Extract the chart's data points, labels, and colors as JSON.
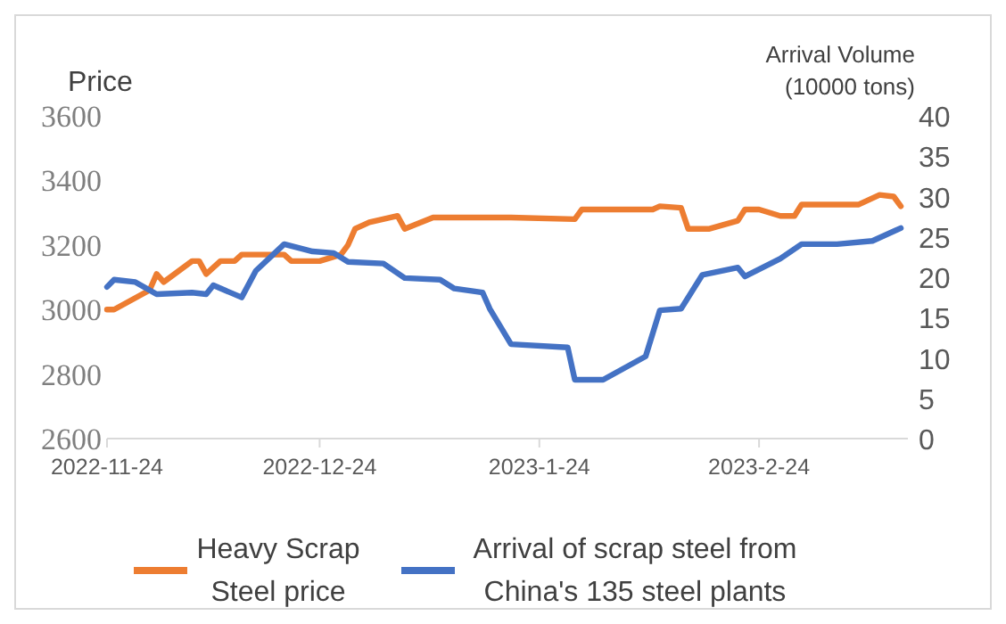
{
  "chart_data": {
    "type": "line",
    "ylabel": "Price",
    "y2label": "Arrival Volume (10000 tons)",
    "xlim": [
      "2022-11-24",
      "2023-03-17"
    ],
    "xticks": [
      {
        "value": "2022-11-24",
        "label": "2022-11-24"
      },
      {
        "value": "2022-12-24",
        "label": "2022-12-24"
      },
      {
        "value": "2023-01-24",
        "label": "2023-1-24"
      },
      {
        "value": "2023-02-24",
        "label": "2023-2-24"
      }
    ],
    "ylim": [
      2600,
      3600
    ],
    "yticks": [
      2600,
      2800,
      3000,
      3200,
      3400,
      3600
    ],
    "y2lim": [
      0,
      40
    ],
    "y2ticks": [
      0,
      5,
      10,
      15,
      20,
      25,
      30,
      35,
      40
    ],
    "legend": "bottom",
    "grid": false,
    "marker": "none",
    "line_style": "solid",
    "series": [
      {
        "name": "Heavy Scrap Steel price",
        "color": "#ed7d31",
        "x": [
          "2022-11-24",
          "2022-11-25",
          "2022-11-30",
          "2022-12-01",
          "2022-12-02",
          "2022-12-06",
          "2022-12-07",
          "2022-12-08",
          "2022-12-10",
          "2022-12-12",
          "2022-12-13",
          "2022-12-19",
          "2022-12-20",
          "2022-12-24",
          "2022-12-27",
          "2022-12-28",
          "2022-12-29",
          "2022-12-31",
          "2023-01-04",
          "2023-01-05",
          "2023-01-09",
          "2023-01-20",
          "2023-01-29",
          "2023-01-30",
          "2023-02-09",
          "2023-02-10",
          "2023-02-13",
          "2023-02-14",
          "2023-02-17",
          "2023-02-21",
          "2023-02-22",
          "2023-02-24",
          "2023-02-27",
          "2023-03-01",
          "2023-03-02",
          "2023-03-10",
          "2023-03-13",
          "2023-03-15",
          "2023-03-16"
        ],
        "values": [
          3000,
          3000,
          3060,
          3110,
          3085,
          3150,
          3150,
          3110,
          3150,
          3150,
          3170,
          3170,
          3150,
          3150,
          3170,
          3200,
          3250,
          3270,
          3290,
          3250,
          3285,
          3285,
          3280,
          3310,
          3310,
          3320,
          3315,
          3250,
          3250,
          3275,
          3310,
          3310,
          3290,
          3290,
          3325,
          3325,
          3355,
          3350,
          3320
        ]
      },
      {
        "name": "Arrival of scrap steel from China's 135 steel plants",
        "color": "#4472c4",
        "axis": "y2",
        "x": [
          "2022-11-24",
          "2022-11-25",
          "2022-11-28",
          "2022-12-01",
          "2022-12-06",
          "2022-12-08",
          "2022-12-09",
          "2022-12-13",
          "2022-12-15",
          "2022-12-19",
          "2022-12-23",
          "2022-12-26",
          "2022-12-28",
          "2023-01-02",
          "2023-01-05",
          "2023-01-10",
          "2023-01-12",
          "2023-01-16",
          "2023-01-17",
          "2023-01-20",
          "2023-01-28",
          "2023-01-29",
          "2023-02-02",
          "2023-02-08",
          "2023-02-10",
          "2023-02-13",
          "2023-02-16",
          "2023-02-21",
          "2023-02-22",
          "2023-02-27",
          "2023-03-02",
          "2023-03-07",
          "2023-03-12",
          "2023-03-16"
        ],
        "values": [
          18.8,
          19.7,
          19.4,
          17.9,
          18.1,
          17.9,
          19.0,
          17.5,
          20.8,
          24.1,
          23.2,
          23.0,
          21.9,
          21.7,
          19.9,
          19.7,
          18.6,
          18.1,
          16.1,
          11.7,
          11.3,
          7.3,
          7.3,
          10.2,
          15.9,
          16.1,
          20.3,
          21.2,
          20.1,
          22.3,
          24.1,
          24.1,
          24.5,
          26.1
        ]
      }
    ]
  }
}
